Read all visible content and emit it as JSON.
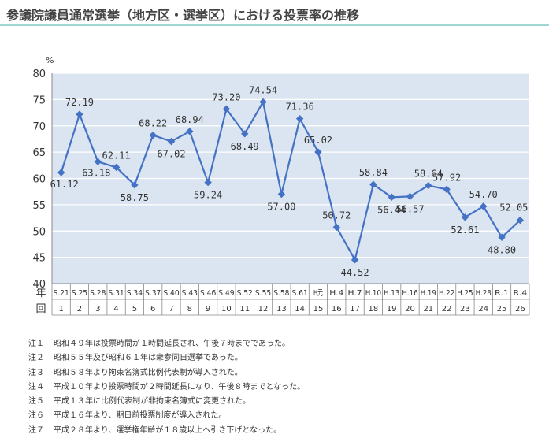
{
  "page": {
    "title": "参議院議員通常選挙（地方区・選挙区）における投票率の推移"
  },
  "chart_data": {
    "type": "line",
    "ylabel": "%",
    "ylim": [
      40,
      80
    ],
    "yticks": [
      40,
      45,
      50,
      55,
      60,
      65,
      70,
      75,
      80
    ],
    "grid": "horizontal",
    "row_labels": {
      "year": "年",
      "round": "回"
    },
    "categories": [
      "S.21",
      "S.25",
      "S.28",
      "S.31",
      "S.34",
      "S.37",
      "S.40",
      "S.43",
      "S.46",
      "S.49",
      "S.52",
      "S.55",
      "S.58",
      "S.61",
      "H元",
      "H.4",
      "H.7",
      "H.10",
      "H.13",
      "H.16",
      "H.19",
      "H.22",
      "H.25",
      "H.28",
      "R.1",
      "R.4"
    ],
    "rounds": [
      "1",
      "2",
      "3",
      "4",
      "5",
      "6",
      "7",
      "8",
      "9",
      "10",
      "11",
      "12",
      "13",
      "14",
      "15",
      "16",
      "17",
      "18",
      "19",
      "20",
      "21",
      "22",
      "23",
      "24",
      "25",
      "26"
    ],
    "series": [
      {
        "values": [
          61.12,
          72.19,
          63.18,
          62.11,
          58.75,
          68.22,
          67.02,
          68.94,
          59.24,
          73.2,
          68.49,
          74.54,
          57.0,
          71.36,
          65.02,
          50.72,
          44.52,
          58.84,
          56.44,
          56.57,
          58.64,
          57.92,
          52.61,
          54.7,
          48.8,
          52.05
        ],
        "labels": [
          "61.12",
          "72.19",
          "63.18",
          "62.11",
          "58.75",
          "68.22",
          "67.02",
          "68.94",
          "59.24",
          "73.20",
          "68.49",
          "74.54",
          "57.00",
          "71.36",
          "65.02",
          "50.72",
          "44.52",
          "58.84",
          "56.44",
          "56.57",
          "58.64",
          "57.92",
          "52.61",
          "54.70",
          "48.80",
          "52.05"
        ],
        "color": "#4472c4"
      }
    ],
    "colors": {
      "plot_background": "#dbe5f1",
      "gridline": "#ffffff",
      "marker": "#4472c4",
      "label": "#333333"
    }
  },
  "notes": [
    {
      "label": "注１",
      "text": "昭和４９年は投票時間が１時間延長され、午後７時までであった。"
    },
    {
      "label": "注２",
      "text": "昭和５５年及び昭和６１年は衆参同日選挙であった。"
    },
    {
      "label": "注３",
      "text": "昭和５８年より拘束名簿式比例代表制が導入された。"
    },
    {
      "label": "注４",
      "text": "平成１０年より投票時間が２時間延長になり、午後８時までとなった。"
    },
    {
      "label": "注５",
      "text": "平成１３年に比例代表制が非拘束名簿式に変更された。"
    },
    {
      "label": "注６",
      "text": "平成１６年より、期日前投票制度が導入された。"
    },
    {
      "label": "注７",
      "text": "平成２８年より、選挙権年齢が１８歳以上へ引き下げとなった。"
    }
  ]
}
